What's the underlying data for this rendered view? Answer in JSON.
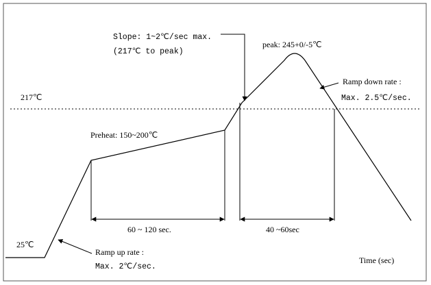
{
  "labels": {
    "slope": "Slope: 1~2℃/sec max.",
    "slope_range": "(217℃ to peak)",
    "peak": "peak: 245+0/-5℃",
    "ramp_down": "Ramp down rate :",
    "ramp_down_rate": "Max. 2.5℃/sec.",
    "liquidus": "217℃",
    "preheat": "Preheat: 150~200℃",
    "preheat_time": "60 ~ 120 sec.",
    "reflow_time": "40 ~60sec",
    "start_temp": "25℃",
    "ramp_up": "Ramp up rate :",
    "ramp_up_rate": "Max. 2℃/sec.",
    "x_axis": "Time (sec)"
  }
}
